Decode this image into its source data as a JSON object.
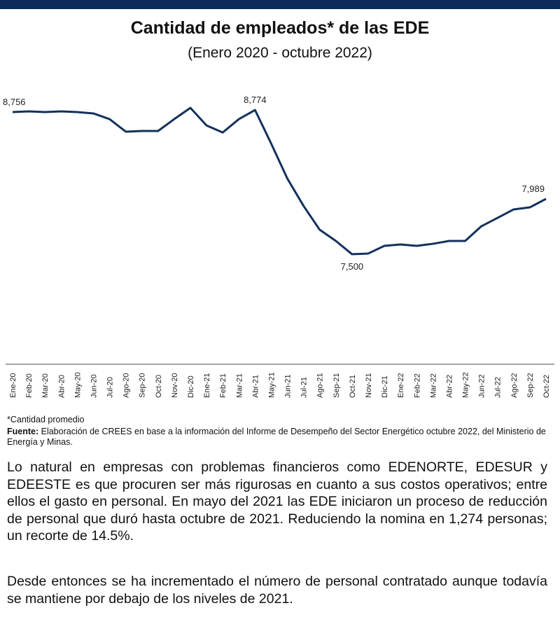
{
  "header": {
    "title": "Cantidad de empleados* de las EDE",
    "subtitle": "(Enero 2020 - octubre 2022)"
  },
  "chart_data": {
    "type": "line",
    "title": "Cantidad de empleados* de las EDE",
    "subtitle": "(Enero 2020 - octubre 2022)",
    "xlabel": "",
    "ylabel": "",
    "ylim": [
      7000,
      9000
    ],
    "grid": false,
    "categories": [
      "Ene-20",
      "Feb-20",
      "Mar-20",
      "Abr-20",
      "May-20",
      "Jun-20",
      "Jul-20",
      "Ago-20",
      "Sep-20",
      "Oct-20",
      "Nov-20",
      "Dic-20",
      "Ene-21",
      "Feb-21",
      "Mar-21",
      "Abr-21",
      "May-21",
      "Jun-21",
      "Jul-21",
      "Ago-21",
      "Sep-21",
      "Oct-21",
      "Nov-21",
      "Dic-21",
      "Ene-22",
      "Feb-22",
      "Mar-22",
      "Abr-22",
      "May-22",
      "Jun-22",
      "Jul-22",
      "Ago-22",
      "Sep-22",
      "Oct-22"
    ],
    "series": [
      {
        "name": "Empleados",
        "color": "#13315c",
        "values": [
          8756,
          8762,
          8756,
          8762,
          8756,
          8744,
          8694,
          8583,
          8589,
          8589,
          8694,
          8793,
          8638,
          8576,
          8694,
          8774,
          8477,
          8168,
          7927,
          7716,
          7617,
          7500,
          7506,
          7574,
          7586,
          7574,
          7592,
          7617,
          7617,
          7747,
          7821,
          7896,
          7914,
          7989
        ]
      }
    ],
    "annotations": [
      {
        "index": 0,
        "text": "8,756",
        "pos": "above"
      },
      {
        "index": 15,
        "text": "8,774",
        "pos": "above"
      },
      {
        "index": 21,
        "text": "7,500",
        "pos": "below"
      },
      {
        "index": 33,
        "text": "7,989",
        "pos": "above"
      }
    ]
  },
  "notes": {
    "footnote": "*Cantidad promedio",
    "source_label": "Fuente:",
    "source_text": " Elaboración de CREES en base a la información del Informe de Desempeño del Sector Energético octubre 2022, del Ministerio de Energía y Minas."
  },
  "body": {
    "p1": "Lo natural en empresas con problemas financieros como EDENORTE, EDESUR y EDEESTE es que procuren ser más rigurosas en cuanto a sus costos operativos; entre ellos el gasto en personal. En mayo del 2021 las EDE iniciaron un proceso de reducción de personal que duró hasta octubre de 2021. Reduciendo la nomina en 1,274 personas; un recorte de 14.5%.",
    "p2": "Desde entonces se ha incrementado el número de personal contratado aunque todavía se mantiene por debajo de los niveles de 2021."
  }
}
